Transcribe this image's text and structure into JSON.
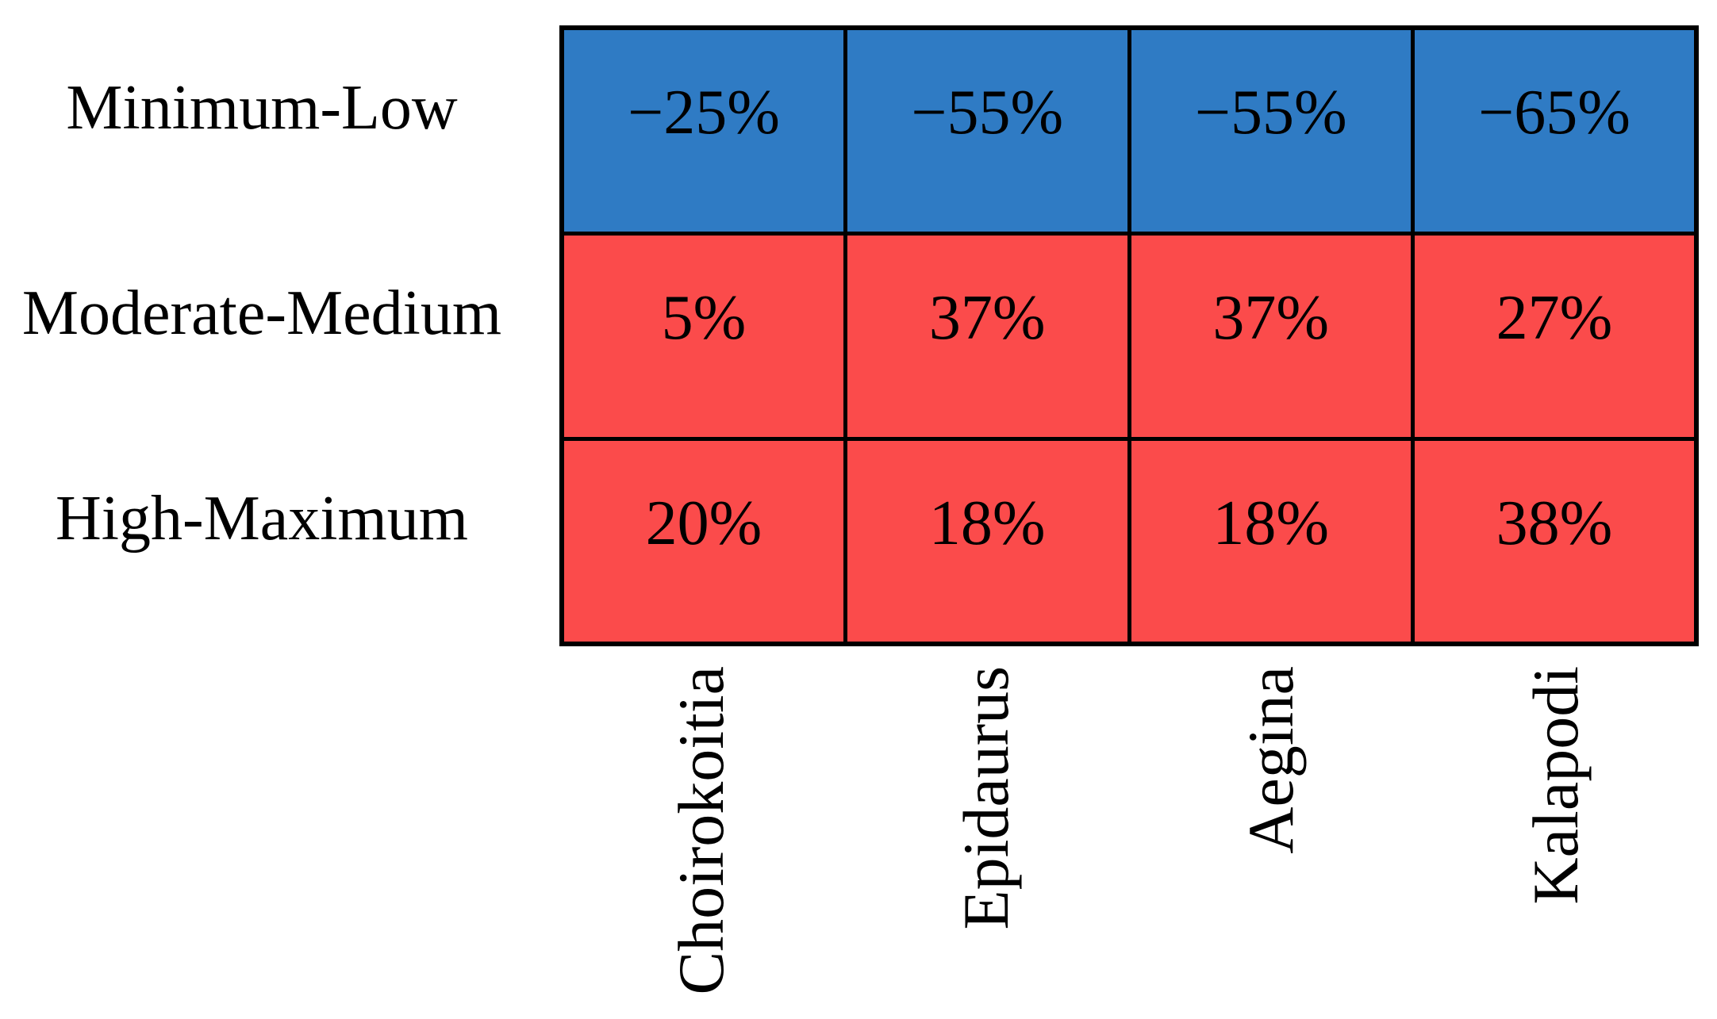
{
  "chart_data": {
    "type": "heatmap",
    "title": "",
    "rows": [
      "Minimum-Low",
      "Moderate-Medium",
      "High-Maximum"
    ],
    "columns": [
      "Choirokoitia",
      "Epidaurus",
      "Aegina",
      "Kalapodi"
    ],
    "values": [
      [
        "−25%",
        "−55%",
        "−55%",
        "−65%"
      ],
      [
        "5%",
        "37%",
        "37%",
        "27%"
      ],
      [
        "20%",
        "18%",
        "18%",
        "38%"
      ]
    ],
    "numeric_values_percent": [
      [
        -25,
        -55,
        -55,
        -65
      ],
      [
        5,
        37,
        37,
        27
      ],
      [
        20,
        18,
        18,
        38
      ]
    ],
    "row_colors_hex": [
      "#2F7BC4",
      "#FB4B4B",
      "#FB4B4B"
    ],
    "colors": {
      "negative_blue": "#2F7BC4",
      "positive_red": "#FB4B4B",
      "grid_border": "#000000",
      "text": "#000000",
      "background": "#FFFFFF"
    },
    "legend": "none",
    "grid": "on",
    "column_label_rotation_deg": 90
  }
}
